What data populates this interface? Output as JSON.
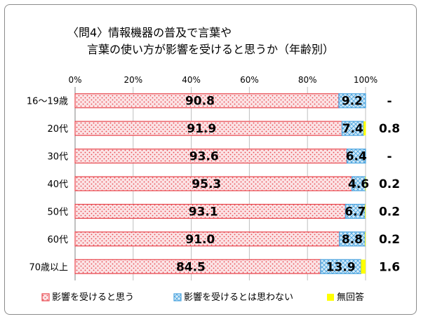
{
  "chart_data": {
    "type": "bar",
    "orientation": "horizontal",
    "stacked": true,
    "title_lines": [
      "〈問4〉情報機器の普及で言葉や",
      "言葉の使い方が影響を受けると思うか（年齢別）"
    ],
    "categories": [
      "16～19歳",
      "20代",
      "30代",
      "40代",
      "50代",
      "60代",
      "70歳以上"
    ],
    "series": [
      {
        "name": "影響を受けると思う",
        "values": [
          90.8,
          91.9,
          93.6,
          95.3,
          93.1,
          91.0,
          84.5
        ],
        "labels": [
          "90.8",
          "91.9",
          "93.6",
          "95.3",
          "93.1",
          "91.0",
          "84.5"
        ],
        "color": "#e8474e"
      },
      {
        "name": "影響を受けるとは思わない",
        "values": [
          9.2,
          7.4,
          6.4,
          4.6,
          6.7,
          8.8,
          13.9
        ],
        "labels": [
          "9.2",
          "7.4",
          "6.4",
          "4.6",
          "6.7",
          "8.8",
          "13.9"
        ],
        "color": "#4aa3df"
      },
      {
        "name": "無回答",
        "values": [
          0,
          0.8,
          0,
          0.2,
          0.2,
          0.2,
          1.6
        ],
        "labels": [
          "-",
          "0.8",
          "-",
          "0.2",
          "0.2",
          "0.2",
          "1.6"
        ],
        "color": "#ffff00"
      }
    ],
    "x_ticks": [
      "0%",
      "20%",
      "40%",
      "60%",
      "80%",
      "100%"
    ],
    "xlim": [
      0,
      100
    ],
    "grid": true,
    "legend": "bottom"
  }
}
